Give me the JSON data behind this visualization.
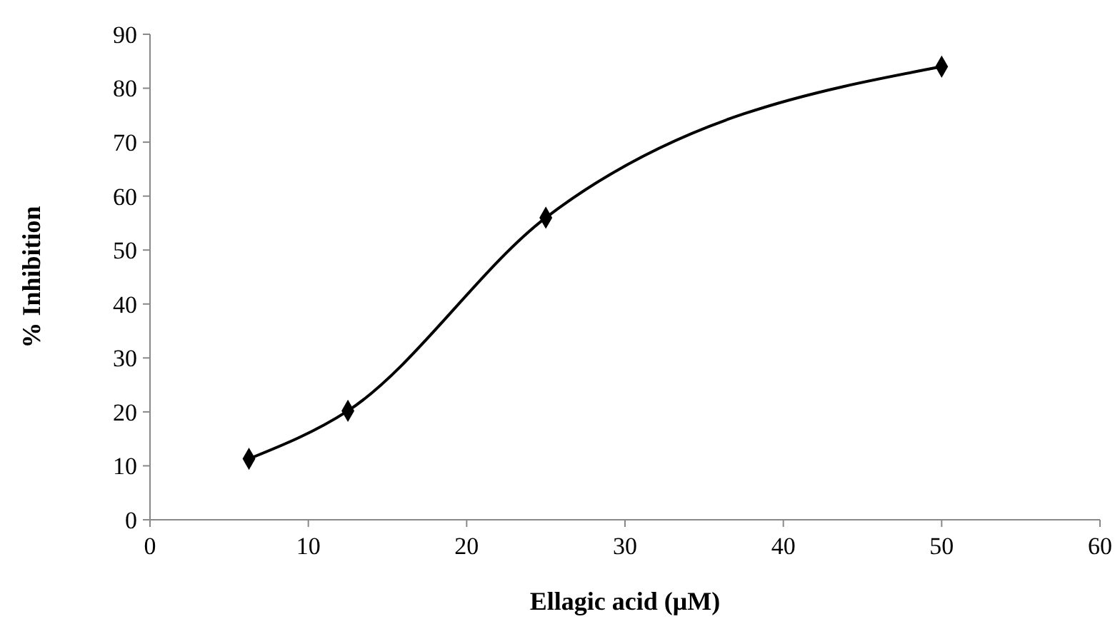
{
  "chart_data": {
    "type": "line",
    "xlabel": "Ellagic acid (μM)",
    "ylabel": "% Inhibition",
    "x": [
      6.25,
      12.5,
      25,
      50
    ],
    "series": [
      {
        "color": "#000000",
        "values": [
          11.3,
          20.2,
          56,
          84
        ]
      }
    ],
    "xlim": [
      0,
      60
    ],
    "xticks": [
      0,
      10,
      20,
      30,
      40,
      50,
      60
    ],
    "ylim": [
      0,
      90
    ],
    "yticks": [
      0,
      10,
      20,
      30,
      40,
      50,
      60,
      70,
      80,
      90
    ],
    "grid": false,
    "marker": "diamond",
    "line_style": "solid"
  }
}
